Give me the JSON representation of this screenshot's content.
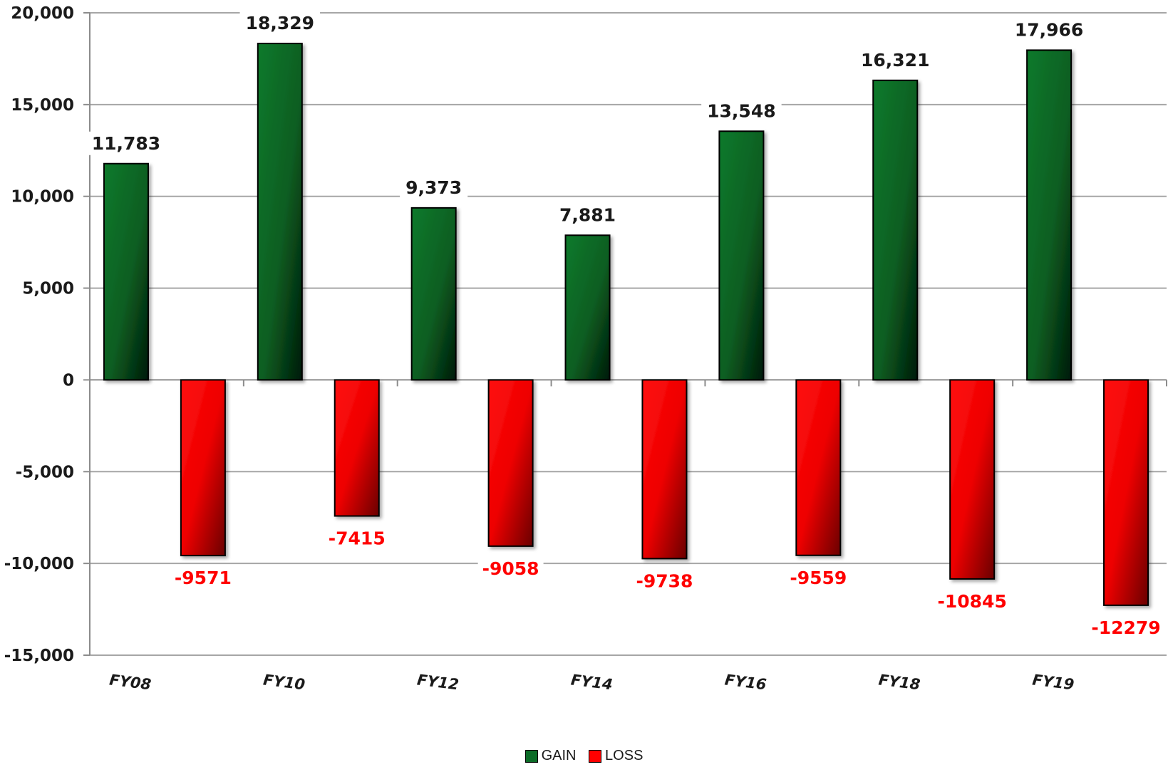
{
  "chart_data": {
    "type": "bar",
    "categories": [
      "FY08",
      "FY10",
      "FY12",
      "FY14",
      "FY16",
      "FY18",
      "FY19"
    ],
    "series": [
      {
        "name": "GAIN",
        "values": [
          11783,
          18329,
          9373,
          7881,
          13548,
          16321,
          17966
        ],
        "labels": [
          "11,783",
          "18,329",
          "9,373",
          "7,881",
          "13,548",
          "16,321",
          "17,966"
        ]
      },
      {
        "name": "LOSS",
        "values": [
          -9571,
          -7415,
          -9058,
          -9738,
          -9559,
          -10845,
          -12279
        ],
        "labels": [
          "-9571",
          "-7415",
          "-9058",
          "-9738",
          "-9559",
          "-10845",
          "-12279"
        ]
      }
    ],
    "ylim": [
      -15000,
      20000
    ],
    "yticks": [
      20000,
      15000,
      10000,
      5000,
      0,
      -5000,
      -10000,
      -15000
    ],
    "ytick_labels": [
      "20,000",
      "15,000",
      "10,000",
      "5,000",
      "0",
      "-5,000",
      "-10,000",
      "-15,000"
    ],
    "grid": true,
    "legend_position": "bottom",
    "colors": {
      "gain": "#0b6b26",
      "loss": "#ff0000"
    }
  }
}
